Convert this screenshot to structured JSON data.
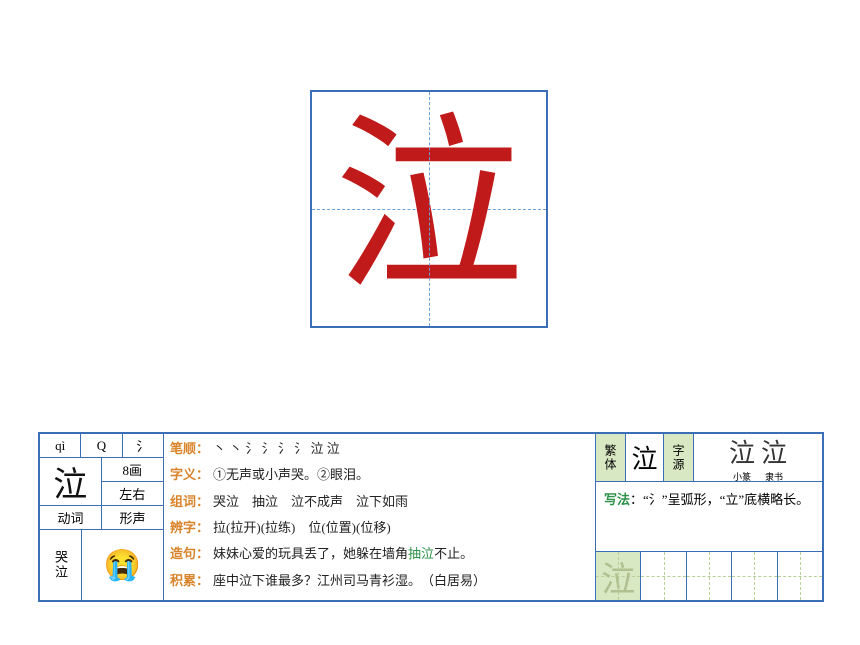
{
  "main_char": "泣",
  "main_char_color": "#c11a1a",
  "box_border_color": "#3a6fb7",
  "dash_color": "#6a9fd7",
  "left": {
    "pinyin": "qì",
    "initial": "Q",
    "radical": "氵",
    "char": "泣",
    "strokes": "8画",
    "structure": "左右",
    "pos": "动词",
    "method": "形声",
    "word": "哭泣",
    "emoji": "😭"
  },
  "mid": {
    "bishun_label": "笔顺",
    "bishun": "丶 丶 氵 氵 氵 氵 泣 泣",
    "ziyi_label": "字义",
    "ziyi": "①无声或小声哭。②眼泪。",
    "zuci_label": "组词",
    "zuci": "哭泣　抽泣　泣不成声　泣下如雨",
    "bianzi_label": "辨字",
    "bianzi": "拉(拉开)(拉练)　位(位置)(位移)",
    "zaoju_label": "造句",
    "zaoju_pre": "妹妹心爱的玩具丢了，她躲在墙角",
    "zaoju_green": "抽泣",
    "zaoju_post": "不止。",
    "jilei_label": "积累",
    "jilei": "座中泣下谁最多？江州司马青衫湿。　（白居易）"
  },
  "right": {
    "fanti_label": "繁体",
    "fanti_char": "泣",
    "ziyuan_label": "字源",
    "src1_glyph": "泣",
    "src1_label": "小篆",
    "src2_glyph": "泣",
    "src2_label": "隶书",
    "xiefa_label": "写法",
    "xiefa_text": "“氵”呈弧形，“立”底横略长。",
    "practice_char": "泣"
  },
  "colors": {
    "label_orange": "#d9842b",
    "green": "#2a9147",
    "panel_green_bg": "#d8e8c2"
  }
}
